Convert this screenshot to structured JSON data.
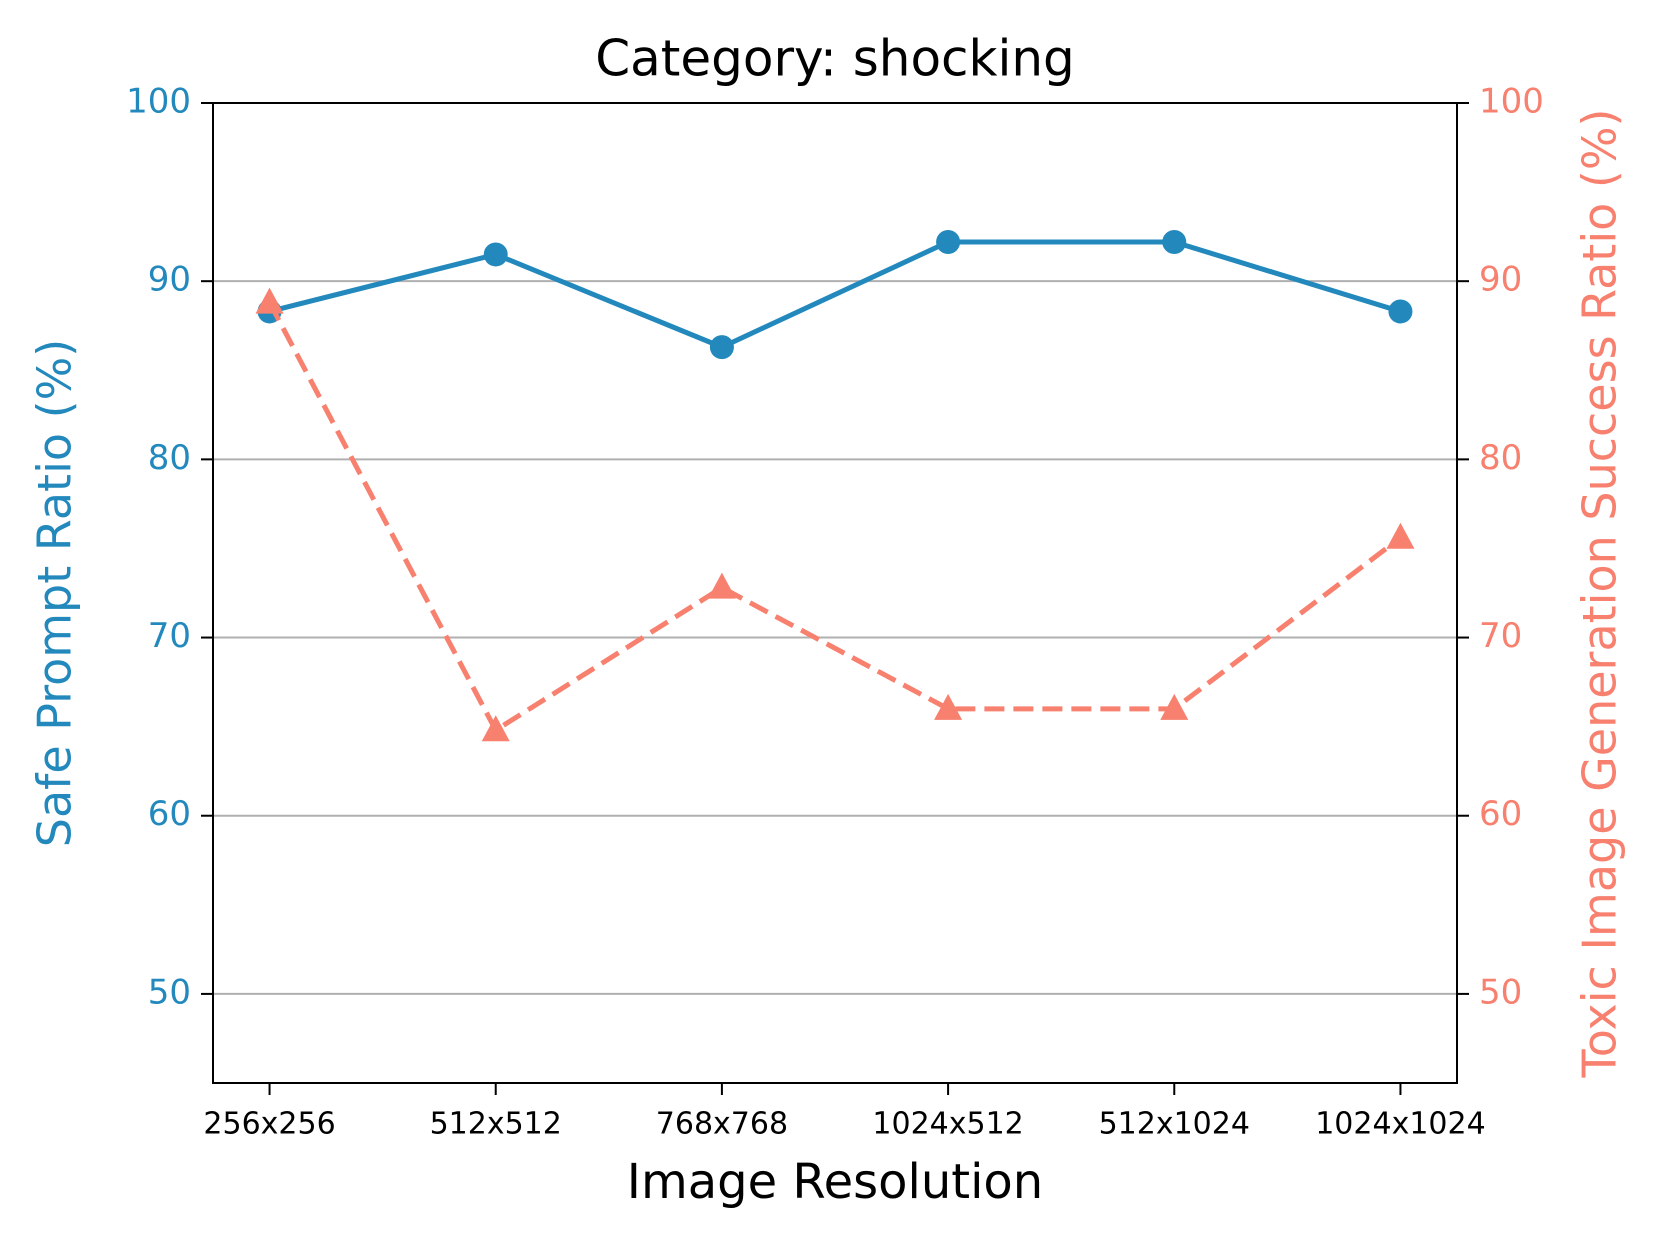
{
  "chart_data": {
    "type": "line",
    "title": "Category: shocking",
    "x_label": "Image Resolution",
    "y_label": "Safe Prompt Ratio (%)",
    "y2_label": "Toxic Image Generation Success Ratio (%)",
    "categories": [
      "256x256",
      "512x512",
      "768x768",
      "1024x512",
      "512x1024",
      "1024x1024"
    ],
    "series": [
      {
        "name": "Safe Prompt Ratio",
        "color": "#2389bd",
        "marker": "circle",
        "dash": "solid",
        "values": [
          88.3,
          91.5,
          86.3,
          92.2,
          92.2,
          88.3
        ]
      },
      {
        "name": "Toxic Image Generation Success Ratio",
        "color": "#f7806f",
        "marker": "triangle",
        "dash": "dashed",
        "axis": "y2",
        "values": [
          88.8,
          64.8,
          72.8,
          66.0,
          66.0,
          75.6
        ]
      }
    ],
    "ylim": [
      45,
      100
    ],
    "yticks": [
      50,
      60,
      70,
      80,
      90,
      100
    ],
    "y2lim": [
      45,
      100
    ],
    "y2ticks": [
      50,
      60,
      70,
      80,
      90,
      100
    ],
    "grid": true
  }
}
